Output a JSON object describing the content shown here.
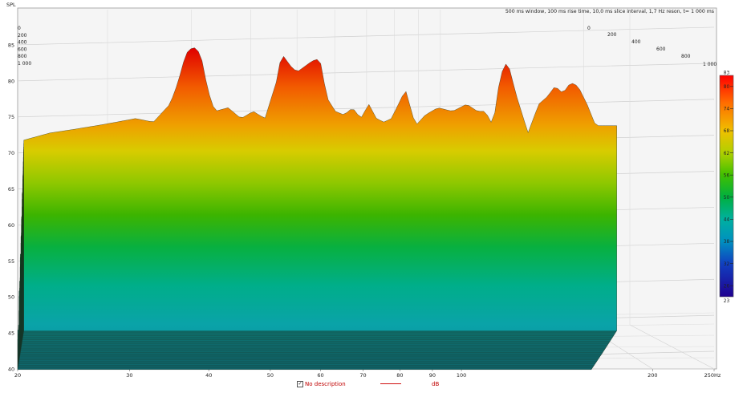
{
  "chart_data": {
    "type": "waterfall-3d",
    "title": "500 ms window, 100 ms rise time, 10,0 ms slice interval, 1,7 Hz reson, t= 1 000 ms",
    "ylabel": "SPL",
    "xunit": "Hz",
    "x_scale": "log",
    "xlim": [
      20,
      250
    ],
    "ylim": [
      40,
      87
    ],
    "x_ticks": [
      20,
      30,
      40,
      50,
      60,
      70,
      80,
      90,
      100,
      200,
      250
    ],
    "x_tick_labels": [
      "20",
      "30",
      "40",
      "50",
      "60",
      "70",
      "80",
      "90",
      "100",
      "200",
      "250Hz"
    ],
    "y_ticks": [
      40,
      45,
      50,
      55,
      60,
      65,
      70,
      75,
      80,
      85
    ],
    "z_ticks_left": [
      "0",
      "200",
      "400",
      "600",
      "800",
      "1 000"
    ],
    "z_ticks_right": [
      "0",
      "200",
      "400",
      "600",
      "800",
      "1 000"
    ],
    "zlim_ms": [
      0,
      1000
    ],
    "colorbar": {
      "min": 23,
      "max": 83,
      "ticks": [
        26,
        32,
        38,
        44,
        50,
        56,
        62,
        68,
        74,
        80
      ],
      "min_label": "23",
      "max_label": "83"
    },
    "first_slice": {
      "x": [
        20,
        22,
        24,
        26,
        28,
        30,
        32,
        34,
        35,
        36,
        37,
        38,
        39,
        40,
        42,
        44,
        46,
        48,
        50,
        51,
        52,
        53,
        54,
        55,
        56,
        57,
        58,
        59,
        60,
        62,
        64,
        66,
        68,
        70,
        72,
        74,
        76,
        78,
        80,
        83,
        86,
        90,
        95,
        100,
        104,
        107,
        110,
        113,
        116,
        120,
        125,
        130,
        134,
        138,
        142,
        146,
        150,
        155,
        160
      ],
      "y": [
        72,
        73,
        73.5,
        74,
        74.5,
        75,
        74.5,
        77,
        80,
        84,
        85,
        84,
        79,
        76,
        76.5,
        75,
        76,
        75,
        80,
        84,
        83,
        82,
        81.5,
        82,
        82.5,
        83,
        83.2,
        82.5,
        78,
        76,
        75.5,
        76.5,
        75,
        77,
        75,
        74.5,
        75,
        77,
        79,
        74,
        75.5,
        76.5,
        76,
        77,
        76,
        76,
        74,
        81,
        83,
        78,
        73,
        77,
        78,
        79.5,
        78.5,
        80,
        79.5,
        77,
        74
      ]
    },
    "series": [
      {
        "name": "No description",
        "unit": "dB",
        "color": "#d01010"
      }
    ]
  }
}
